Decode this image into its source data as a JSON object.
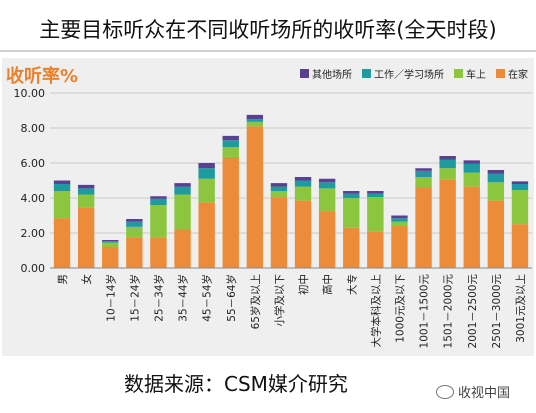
{
  "title": "主要目标听众在不同收听场所的收听率(全天时段)",
  "source": "数据来源：CSM媒介研究",
  "watermark": "收视中国",
  "colors": {
    "home": "#ec8c3a",
    "car": "#8cc63f",
    "work": "#1f9a9f",
    "other": "#5b3f90"
  },
  "chart_data": {
    "type": "bar",
    "stacked": true,
    "ylabel": "收听率%",
    "ylim": [
      0,
      10
    ],
    "yticks": [
      "0.00",
      "2.00",
      "4.00",
      "6.00",
      "8.00",
      "10.00"
    ],
    "legend_position": "top-right",
    "legend_order": [
      "其他场所",
      "工作／学习场所",
      "车上",
      "在家"
    ],
    "categories": [
      "男",
      "女",
      "10－14岁",
      "15－24岁",
      "25－34岁",
      "35－44岁",
      "45－54岁",
      "55－64岁",
      "65岁及以上",
      "小学及以下",
      "初中",
      "高中",
      "大专",
      "大学本科及以上",
      "1000元及以下",
      "1001－1500元",
      "1501－2000元",
      "2001－2500元",
      "2501－3000元",
      "3001元及以上"
    ],
    "series": [
      {
        "name": "在家",
        "color": "#ec8c3a",
        "values": [
          2.85,
          3.45,
          1.2,
          1.75,
          1.75,
          2.2,
          3.75,
          6.35,
          8.1,
          4.05,
          3.85,
          3.25,
          2.3,
          2.1,
          2.4,
          4.6,
          5.05,
          4.65,
          3.85,
          2.5
        ]
      },
      {
        "name": "车上",
        "color": "#8cc63f",
        "values": [
          1.55,
          0.75,
          0.25,
          0.6,
          1.85,
          2.0,
          1.35,
          0.55,
          0.25,
          0.35,
          0.8,
          1.3,
          1.7,
          1.95,
          0.25,
          0.6,
          0.65,
          0.8,
          1.05,
          1.95
        ]
      },
      {
        "name": "工作／学习场所",
        "color": "#1f9a9f",
        "values": [
          0.4,
          0.35,
          0.08,
          0.3,
          0.35,
          0.45,
          0.6,
          0.4,
          0.15,
          0.25,
          0.35,
          0.35,
          0.25,
          0.2,
          0.2,
          0.35,
          0.5,
          0.5,
          0.5,
          0.35
        ]
      },
      {
        "name": "其他场所",
        "color": "#5b3f90",
        "values": [
          0.2,
          0.2,
          0.07,
          0.15,
          0.15,
          0.2,
          0.3,
          0.25,
          0.25,
          0.2,
          0.2,
          0.2,
          0.15,
          0.15,
          0.15,
          0.15,
          0.2,
          0.2,
          0.2,
          0.15
        ]
      }
    ]
  }
}
